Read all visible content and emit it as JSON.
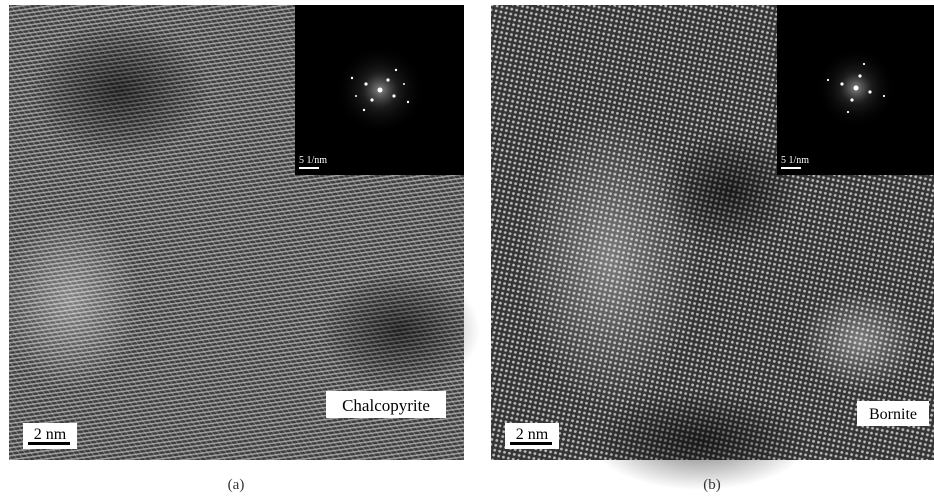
{
  "panels": [
    {
      "label": "(a)",
      "material": "Chalcopyrite",
      "scale_bar": "2 nm",
      "inset_scale_bar": "5 1/nm"
    },
    {
      "label": "(b)",
      "material": "Bornite",
      "scale_bar": "2 nm",
      "inset_scale_bar": "5 1/nm"
    }
  ]
}
